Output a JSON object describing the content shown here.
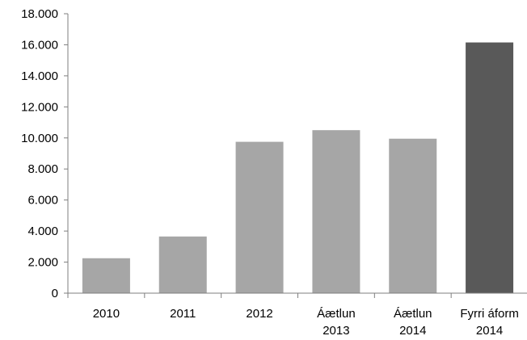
{
  "chart_data": {
    "type": "bar",
    "categories": [
      [
        "2010"
      ],
      [
        "2011"
      ],
      [
        "2012"
      ],
      [
        "Áætlun",
        "2013"
      ],
      [
        "Áætlun",
        "2014"
      ],
      [
        "Fyrri áform",
        "2014"
      ]
    ],
    "values": [
      2250,
      3650,
      9750,
      10500,
      9950,
      16150
    ],
    "bar_colors": [
      "#a6a6a6",
      "#a6a6a6",
      "#a6a6a6",
      "#a6a6a6",
      "#a6a6a6",
      "#595959"
    ],
    "ylim": [
      0,
      18000
    ],
    "yticks": [
      {
        "value": 0,
        "label": "0"
      },
      {
        "value": 2000,
        "label": "2.000"
      },
      {
        "value": 4000,
        "label": "4.000"
      },
      {
        "value": 6000,
        "label": "6.000"
      },
      {
        "value": 8000,
        "label": "8.000"
      },
      {
        "value": 10000,
        "label": "10.000"
      },
      {
        "value": 12000,
        "label": "12.000"
      },
      {
        "value": 14000,
        "label": "14.000"
      },
      {
        "value": 16000,
        "label": "16.000"
      },
      {
        "value": 18000,
        "label": "18.000"
      }
    ],
    "title": "",
    "xlabel": "",
    "ylabel": "",
    "grid": false,
    "legend": false,
    "axis_color": "#7f7f7f"
  }
}
